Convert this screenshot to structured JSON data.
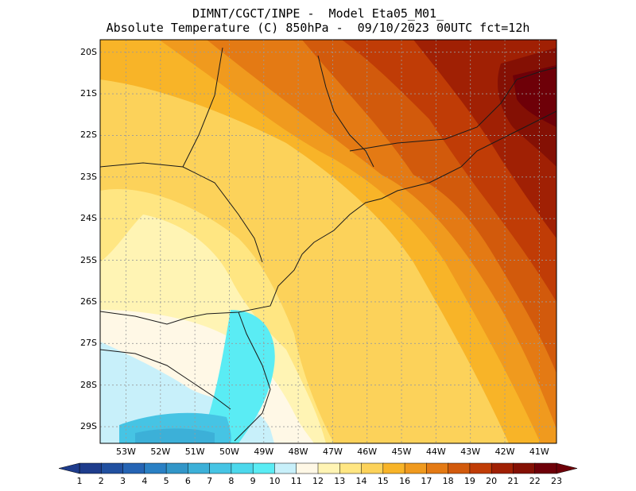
{
  "header": {
    "line1": "DIMNT/CGCT/INPE -  Model Eta05_M01_",
    "line2": "Absolute Temperature (C) 850hPa -  09/10/2023 00UTC fct=12h"
  },
  "map": {
    "lat_labels": [
      "20S",
      "21S",
      "22S",
      "23S",
      "24S",
      "25S",
      "26S",
      "27S",
      "28S",
      "29S"
    ],
    "lon_labels": [
      "53W",
      "52W",
      "51W",
      "50W",
      "49W",
      "48W",
      "47W",
      "46W",
      "45W",
      "44W",
      "43W",
      "42W",
      "41W"
    ],
    "lon_range": [
      -53.75,
      -40.5
    ],
    "lat_range": [
      -29.4,
      -19.7
    ],
    "field_description": "850hPa temperature field, coolest in the southwest, warmest in the northeast"
  },
  "colorbar": {
    "labels": [
      "1",
      "2",
      "3",
      "4",
      "5",
      "6",
      "7",
      "8",
      "9",
      "10",
      "11",
      "12",
      "13",
      "14",
      "15",
      "16",
      "17",
      "18",
      "19",
      "20",
      "21",
      "22",
      "23"
    ],
    "colors": [
      "#1e3c8c",
      "#2150a0",
      "#2564b4",
      "#2a80c4",
      "#3296c8",
      "#3cb0d8",
      "#46c4e4",
      "#4cd8ec",
      "#5aecf4",
      "#c8f0fa",
      "#fff8e6",
      "#fff4b4",
      "#ffe682",
      "#fcd25a",
      "#f8b428",
      "#f09a1e",
      "#e47a14",
      "#d25a0c",
      "#c03c06",
      "#a02004",
      "#841004",
      "#6e0008"
    ]
  },
  "colors": {
    "coast": "#1a1a1a",
    "grid": "#9a9a9a",
    "frame": "#000000"
  }
}
